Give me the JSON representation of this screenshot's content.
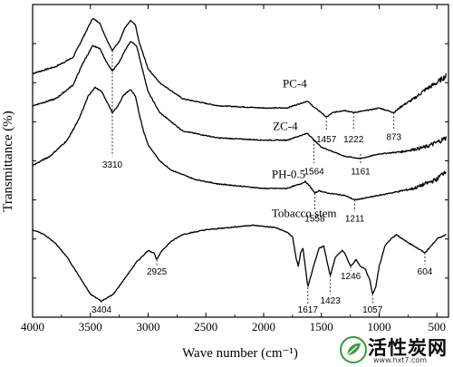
{
  "chart_data": {
    "type": "line",
    "title": "",
    "xlabel": "Wave number (cm⁻¹)",
    "ylabel": "Transmittance (%)",
    "xlim": [
      4000,
      400
    ],
    "x_reversed": true,
    "x_ticks": [
      4000,
      3500,
      3000,
      2500,
      2000,
      1500,
      1000,
      500
    ],
    "grid": false,
    "legend": "none",
    "y_ticks_shown": false,
    "series": [
      {
        "name": "PC-4",
        "points": [
          [
            4000,
            0.72
          ],
          [
            3800,
            0.75
          ],
          [
            3650,
            0.79
          ],
          [
            3560,
            0.88
          ],
          [
            3480,
            0.96
          ],
          [
            3420,
            0.94
          ],
          [
            3360,
            0.87
          ],
          [
            3310,
            0.82
          ],
          [
            3250,
            0.86
          ],
          [
            3200,
            0.92
          ],
          [
            3150,
            0.95
          ],
          [
            3110,
            0.93
          ],
          [
            3080,
            0.86
          ],
          [
            3040,
            0.8
          ],
          [
            3000,
            0.74
          ],
          [
            2900,
            0.68
          ],
          [
            2700,
            0.61
          ],
          [
            2400,
            0.58
          ],
          [
            2000,
            0.57
          ],
          [
            1800,
            0.57
          ],
          [
            1680,
            0.59
          ],
          [
            1620,
            0.6
          ],
          [
            1580,
            0.58
          ],
          [
            1500,
            0.55
          ],
          [
            1457,
            0.53
          ],
          [
            1400,
            0.55
          ],
          [
            1300,
            0.56
          ],
          [
            1222,
            0.55
          ],
          [
            1100,
            0.56
          ],
          [
            1000,
            0.57
          ],
          [
            873,
            0.55
          ],
          [
            800,
            0.58
          ],
          [
            700,
            0.61
          ],
          [
            600,
            0.65
          ],
          [
            500,
            0.68
          ],
          [
            420,
            0.71
          ]
        ]
      },
      {
        "name": "ZC-4",
        "points": [
          [
            4000,
            0.58
          ],
          [
            3800,
            0.61
          ],
          [
            3650,
            0.67
          ],
          [
            3560,
            0.77
          ],
          [
            3480,
            0.84
          ],
          [
            3420,
            0.83
          ],
          [
            3360,
            0.77
          ],
          [
            3310,
            0.73
          ],
          [
            3250,
            0.77
          ],
          [
            3200,
            0.82
          ],
          [
            3150,
            0.86
          ],
          [
            3100,
            0.84
          ],
          [
            3050,
            0.74
          ],
          [
            3000,
            0.64
          ],
          [
            2900,
            0.55
          ],
          [
            2700,
            0.47
          ],
          [
            2400,
            0.44
          ],
          [
            2000,
            0.43
          ],
          [
            1800,
            0.43
          ],
          [
            1680,
            0.45
          ],
          [
            1620,
            0.46
          ],
          [
            1564,
            0.43
          ],
          [
            1500,
            0.4
          ],
          [
            1400,
            0.38
          ],
          [
            1300,
            0.36
          ],
          [
            1161,
            0.35
          ],
          [
            1000,
            0.37
          ],
          [
            800,
            0.38
          ],
          [
            600,
            0.4
          ],
          [
            500,
            0.42
          ],
          [
            420,
            0.44
          ]
        ]
      },
      {
        "name": "PH-0.5",
        "points": [
          [
            4000,
            0.32
          ],
          [
            3850,
            0.36
          ],
          [
            3700,
            0.43
          ],
          [
            3600,
            0.52
          ],
          [
            3520,
            0.62
          ],
          [
            3460,
            0.66
          ],
          [
            3400,
            0.64
          ],
          [
            3340,
            0.58
          ],
          [
            3310,
            0.55
          ],
          [
            3260,
            0.58
          ],
          [
            3220,
            0.62
          ],
          [
            3180,
            0.64
          ],
          [
            3150,
            0.65
          ],
          [
            3110,
            0.62
          ],
          [
            3080,
            0.55
          ],
          [
            3040,
            0.47
          ],
          [
            3000,
            0.41
          ],
          [
            2900,
            0.34
          ],
          [
            2800,
            0.3
          ],
          [
            2600,
            0.26
          ],
          [
            2400,
            0.24
          ],
          [
            2000,
            0.22
          ],
          [
            1800,
            0.22
          ],
          [
            1680,
            0.24
          ],
          [
            1640,
            0.25
          ],
          [
            1600,
            0.23
          ],
          [
            1558,
            0.2
          ],
          [
            1520,
            0.21
          ],
          [
            1450,
            0.2
          ],
          [
            1300,
            0.19
          ],
          [
            1211,
            0.17
          ],
          [
            1100,
            0.18
          ],
          [
            1000,
            0.19
          ],
          [
            900,
            0.2
          ],
          [
            800,
            0.21
          ],
          [
            700,
            0.22
          ],
          [
            600,
            0.24
          ],
          [
            500,
            0.26
          ],
          [
            420,
            0.3
          ]
        ]
      },
      {
        "name": "Tobacco stem",
        "points": [
          [
            4000,
            0.04
          ],
          [
            3900,
            0.02
          ],
          [
            3800,
            -0.02
          ],
          [
            3700,
            -0.08
          ],
          [
            3600,
            -0.16
          ],
          [
            3500,
            -0.24
          ],
          [
            3404,
            -0.27
          ],
          [
            3300,
            -0.24
          ],
          [
            3200,
            -0.17
          ],
          [
            3100,
            -0.1
          ],
          [
            3000,
            -0.05
          ],
          [
            2950,
            -0.06
          ],
          [
            2925,
            -0.09
          ],
          [
            2880,
            -0.05
          ],
          [
            2800,
            -0.01
          ],
          [
            2700,
            0.02
          ],
          [
            2500,
            0.04
          ],
          [
            2300,
            0.05
          ],
          [
            2100,
            0.06
          ],
          [
            1900,
            0.05
          ],
          [
            1800,
            0.03
          ],
          [
            1750,
            0.01
          ],
          [
            1720,
            -0.08
          ],
          [
            1700,
            -0.12
          ],
          [
            1680,
            -0.06
          ],
          [
            1660,
            -0.04
          ],
          [
            1617,
            -0.21
          ],
          [
            1580,
            -0.14
          ],
          [
            1520,
            -0.04
          ],
          [
            1480,
            -0.03
          ],
          [
            1450,
            -0.1
          ],
          [
            1423,
            -0.16
          ],
          [
            1380,
            -0.08
          ],
          [
            1320,
            -0.05
          ],
          [
            1300,
            -0.06
          ],
          [
            1246,
            -0.12
          ],
          [
            1200,
            -0.09
          ],
          [
            1160,
            -0.12
          ],
          [
            1120,
            -0.13
          ],
          [
            1080,
            -0.18
          ],
          [
            1057,
            -0.24
          ],
          [
            1030,
            -0.21
          ],
          [
            1000,
            -0.12
          ],
          [
            950,
            -0.03
          ],
          [
            900,
            0.0
          ],
          [
            850,
            0.02
          ],
          [
            800,
            0.0
          ],
          [
            700,
            -0.03
          ],
          [
            604,
            -0.06
          ],
          [
            550,
            -0.03
          ],
          [
            500,
            0.0
          ],
          [
            420,
            0.02
          ]
        ]
      }
    ],
    "series_labels": [
      {
        "name": "PC-4",
        "x": 1835,
        "y": 0.66
      },
      {
        "name": "ZC-4",
        "x": 1920,
        "y": 0.475
      },
      {
        "name": "PH-0.5",
        "x": 1930,
        "y": 0.265
      },
      {
        "name": "Tobacco stem",
        "x": 1930,
        "y": 0.095
      }
    ],
    "annotations": [
      {
        "label": "3310",
        "x": 3310,
        "from": 0.82,
        "to": 0.36,
        "text_y": 0.31
      },
      {
        "label": "1457",
        "x": 1457,
        "from": 0.53,
        "to": 0.47,
        "text_y": 0.42
      },
      {
        "label": "1222",
        "x": 1222,
        "from": 0.55,
        "to": 0.47,
        "text_y": 0.42
      },
      {
        "label": "873",
        "x": 873,
        "from": 0.55,
        "to": 0.48,
        "text_y": 0.43
      },
      {
        "label": "1564",
        "x": 1564,
        "from": 0.43,
        "to": 0.33,
        "text_y": 0.28
      },
      {
        "label": "1161",
        "x": 1161,
        "from": 0.37,
        "to": 0.33,
        "text_y": 0.28
      },
      {
        "label": "1558",
        "x": 1558,
        "from": 0.2,
        "to": 0.12,
        "text_y": 0.075
      },
      {
        "label": "1211",
        "x": 1211,
        "from": 0.17,
        "to": 0.12,
        "text_y": 0.075
      },
      {
        "label": "2925",
        "x": 2925,
        "from": -0.09,
        "to": -0.12,
        "text_y": -0.155
      },
      {
        "label": "604",
        "x": 604,
        "from": -0.06,
        "to": -0.11,
        "text_y": -0.155
      },
      {
        "label": "1246",
        "x": 1246,
        "from": -0.12,
        "to": -0.14,
        "text_y": -0.175
      },
      {
        "label": "3404",
        "x": 3404,
        "from": -0.27,
        "to": -0.285,
        "text_y": -0.32
      },
      {
        "label": "1617",
        "x": 1617,
        "from": -0.21,
        "to": -0.285,
        "text_y": -0.32
      },
      {
        "label": "1423",
        "x": 1423,
        "from": -0.16,
        "to": -0.24,
        "text_y": -0.28
      },
      {
        "label": "1057",
        "x": 1057,
        "from": -0.24,
        "to": -0.285,
        "text_y": -0.32
      }
    ]
  },
  "watermark": {
    "text": "活性炭网",
    "url": "www.hxt7.com"
  },
  "colors": {
    "line": "#000000",
    "background": "#ffffff",
    "logo_green": "#3a9a3a"
  }
}
